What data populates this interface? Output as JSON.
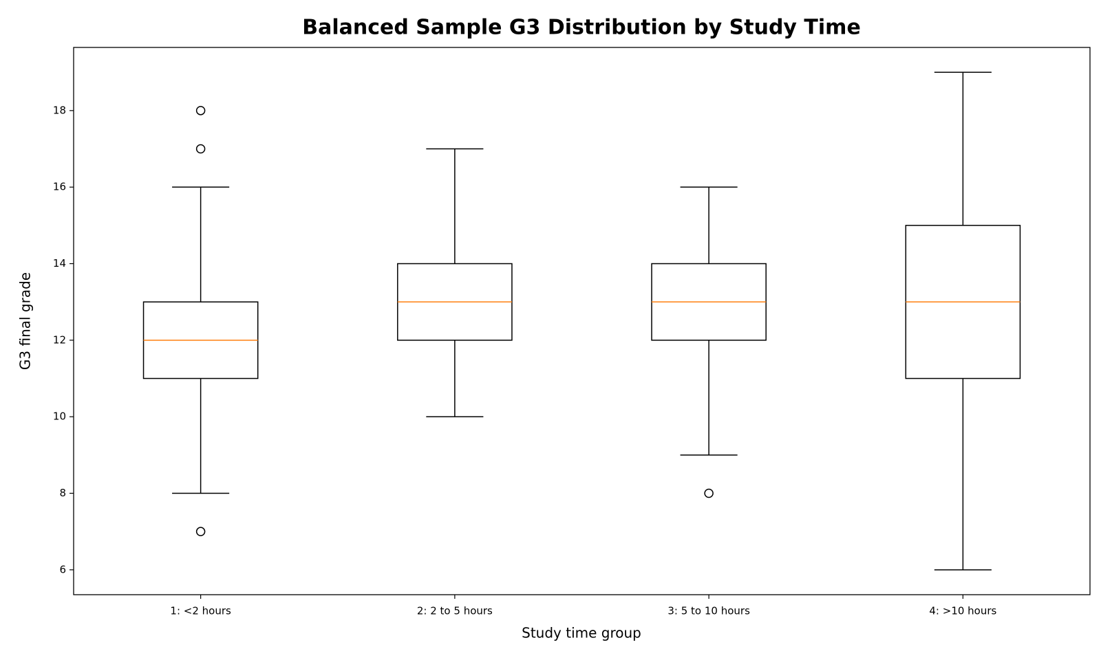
{
  "chart_data": {
    "type": "boxplot",
    "title": "Balanced Sample G3 Distribution by Study Time",
    "xlabel": "Study time group",
    "ylabel": "G3 final grade",
    "categories": [
      "1: <2 hours",
      "2: 2 to 5 hours",
      "3: 5 to 10 hours",
      "4: >10 hours"
    ],
    "boxes": [
      {
        "whislo": 8,
        "q1": 11,
        "med": 12,
        "q3": 13,
        "whishi": 16,
        "fliers": [
          18,
          17,
          7
        ]
      },
      {
        "whislo": 10,
        "q1": 12,
        "med": 13,
        "q3": 14,
        "whishi": 17,
        "fliers": []
      },
      {
        "whislo": 9,
        "q1": 12,
        "med": 13,
        "q3": 14,
        "whishi": 16,
        "fliers": [
          8
        ]
      },
      {
        "whislo": 6,
        "q1": 11,
        "med": 13,
        "q3": 15,
        "whishi": 19,
        "fliers": []
      }
    ],
    "box_color": "#000000",
    "median_color": "#ff7f0e",
    "ylim": [
      5.35,
      19.65
    ],
    "yticks": [
      6,
      8,
      10,
      12,
      14,
      16,
      18
    ],
    "grid": false
  }
}
